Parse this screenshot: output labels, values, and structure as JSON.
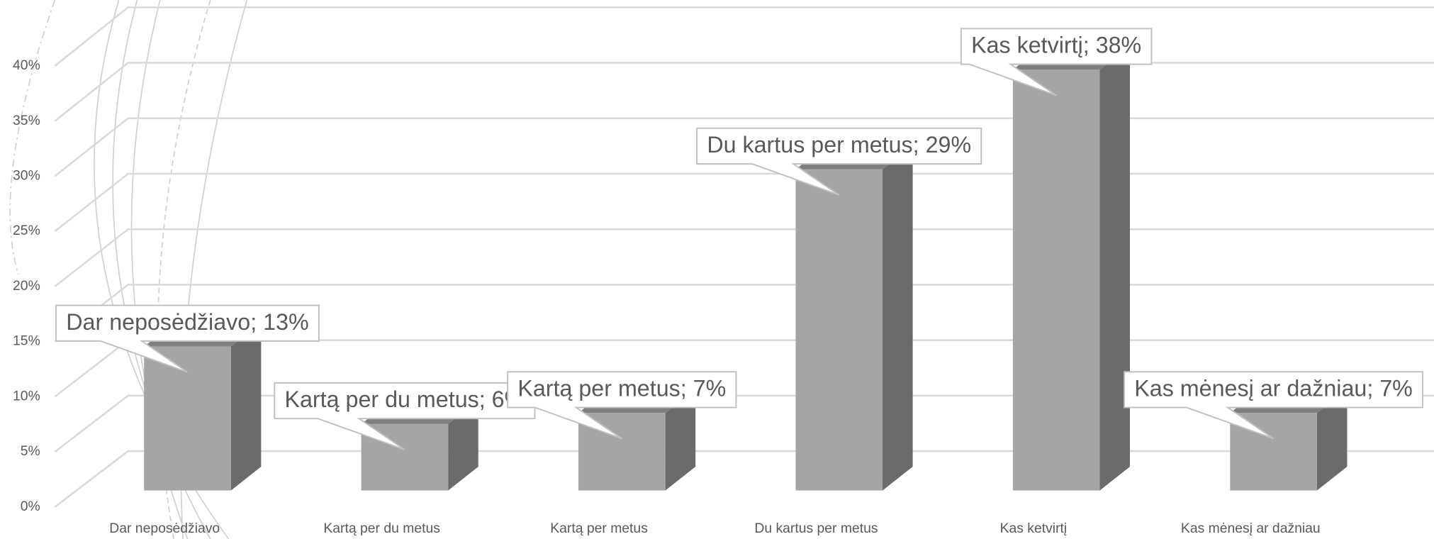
{
  "chart_data": {
    "type": "bar3d",
    "categories": [
      "Dar neposėdžiavo",
      "Kartą per du metus",
      "Kartą per metus",
      "Du kartus per metus",
      "Kas ketvirtį",
      "Kas mėnesį ar dažniau"
    ],
    "values": [
      13,
      6,
      7,
      29,
      38,
      7
    ],
    "value_labels": [
      "Dar neposėdžiavo; 13%",
      "Kartą per du metus; 6%",
      "Kartą per metus; 7%",
      "Du kartus per metus; 29%",
      "Kas ketvirtį; 38%",
      "Kas mėnesį ar dažniau; 7%"
    ],
    "color": "#a5a5a5",
    "ylim": [
      0,
      40
    ],
    "yticks": [
      {
        "value": 0,
        "label": "0%"
      },
      {
        "value": 5,
        "label": "5%"
      },
      {
        "value": 10,
        "label": "10%"
      },
      {
        "value": 15,
        "label": "15%"
      },
      {
        "value": 20,
        "label": "20%"
      },
      {
        "value": 25,
        "label": "25%"
      },
      {
        "value": 30,
        "label": "30%"
      },
      {
        "value": 35,
        "label": "35%"
      },
      {
        "value": 40,
        "label": "40%"
      }
    ],
    "grid": true
  }
}
